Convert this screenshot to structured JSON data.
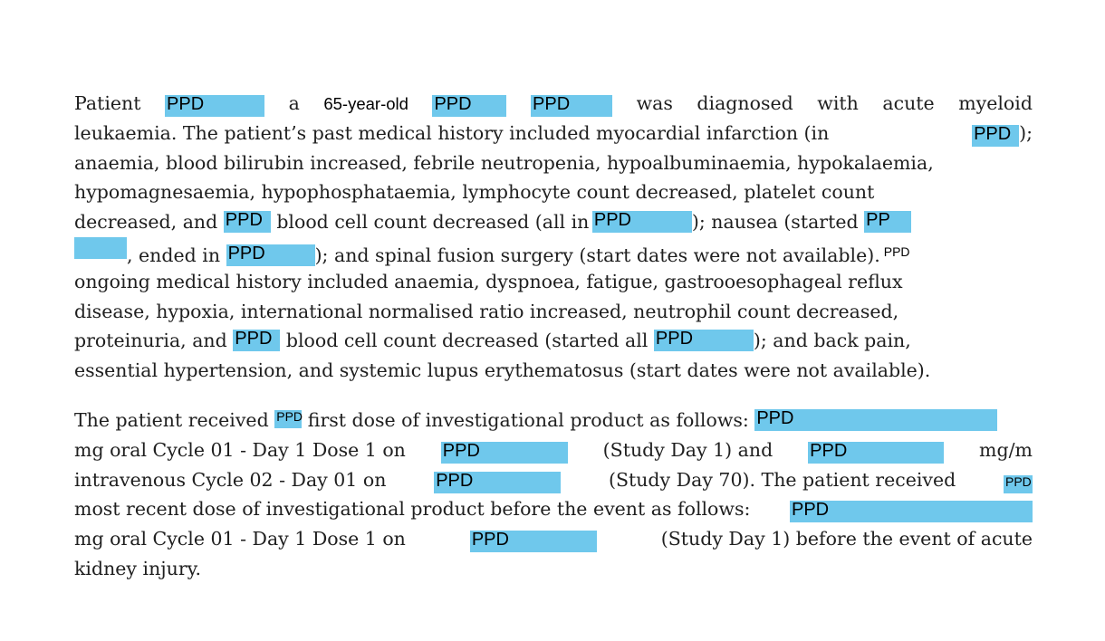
{
  "document": {
    "paragraph1": {
      "w": [
        "Patient",
        "a",
        "65-year-old",
        "was",
        "diagnosed",
        "with",
        "acute",
        "myeloid"
      ],
      "t": [
        "leukaemia. The patient’s past medical history included myocardial infarction (in",
        ");",
        "anaemia, blood bilirubin increased, febrile neutropenia, hypoalbuminaemia, hypokalaemia,",
        "hypomagnesaemia, hypophosphataemia, lymphocyte count decreased, platelet count",
        "decreased, and",
        "blood cell count decreased (all in",
        "); nausea (started",
        ", ended in",
        "); and spinal fusion surgery (start dates were not available).",
        "ongoing medical history included anaemia, dyspnoea, fatigue, gastrooesophageal reflux",
        "disease, hypoxia, international normalised ratio increased, neutrophil count decreased,",
        "proteinuria, and",
        "blood cell count decreased (started all",
        "); and back pain,",
        "essential hypertension, and systemic lupus erythematosus (start dates were not available)."
      ]
    },
    "paragraph2": {
      "t": [
        "The patient received",
        "first dose of investigational product as follows:",
        "mg oral Cycle 01 - Day 1 Dose 1 on",
        "(Study Day 1) and",
        "mg/m",
        "intravenous Cycle 02 - Day 01 on",
        "(Study Day 70). The patient received",
        "most recent dose of investigational product before the event as follows:",
        "mg oral Cycle 01 - Day 1 Dose 1 on",
        "(Study Day 1) before the event of acute",
        "kidney injury."
      ]
    },
    "redaction": {
      "label": "PPD",
      "label_partial": "PP",
      "color": "#6fc8ec"
    }
  }
}
